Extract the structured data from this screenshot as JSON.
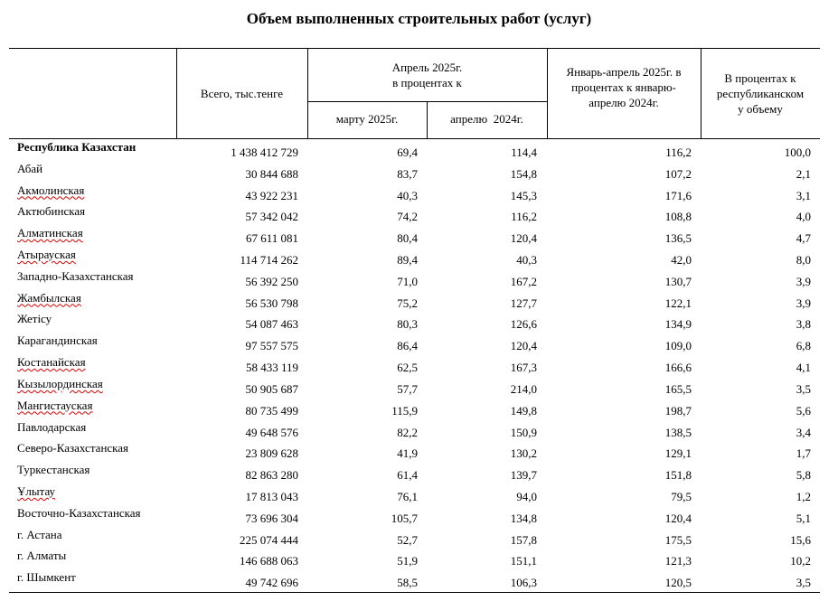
{
  "title": "Объем выполненных строительных работ (услуг)",
  "header": {
    "total": "Всего, тыс.тенге",
    "april_group": [
      "Апрель 2025г.",
      "в процентах к"
    ],
    "march": "марту 2025г.",
    "april2024": "апрелю  2024г.",
    "jan_apr": [
      "Январь-апрель 2025г. в",
      "процентах к январю-",
      "апрелю 2024г."
    ],
    "share": [
      "В процентах к",
      "республиканском",
      "у объему"
    ]
  },
  "table": {
    "rows": [
      [
        "Республика Казахстан",
        "1 438 412 729",
        "69,4",
        "114,4",
        "116,2",
        "100,0"
      ],
      [
        "Абай",
        "30 844 688",
        "83,7",
        "154,8",
        "107,2",
        "2,1"
      ],
      [
        "Акмолинская",
        "43 922 231",
        "40,3",
        "145,3",
        "171,6",
        "3,1"
      ],
      [
        "Актюбинская",
        "57 342 042",
        "74,2",
        "116,2",
        "108,8",
        "4,0"
      ],
      [
        "Алматинская",
        "67 611 081",
        "80,4",
        "120,4",
        "136,5",
        "4,7"
      ],
      [
        "Атырауская",
        "114 714 262",
        "89,4",
        "40,3",
        "42,0",
        "8,0"
      ],
      [
        "Западно-Казахстанская",
        "56 392 250",
        "71,0",
        "167,2",
        "130,7",
        "3,9"
      ],
      [
        "Жамбылская",
        "56 530 798",
        "75,2",
        "127,7",
        "122,1",
        "3,9"
      ],
      [
        "Жетісу",
        "54 087 463",
        "80,3",
        "126,6",
        "134,9",
        "3,8"
      ],
      [
        "Карагандинская",
        "97 557 575",
        "86,4",
        "120,4",
        "109,0",
        "6,8"
      ],
      [
        "Костанайская",
        "58 433 119",
        "62,5",
        "167,3",
        "166,6",
        "4,1"
      ],
      [
        "Кызылординская",
        "50 905 687",
        "57,7",
        "214,0",
        "165,5",
        "3,5"
      ],
      [
        "Мангистауская",
        "80 735 499",
        "115,9",
        "149,8",
        "198,7",
        "5,6"
      ],
      [
        "Павлодарская",
        "49 648 576",
        "82,2",
        "150,9",
        "138,5",
        "3,4"
      ],
      [
        "Северо-Казахстанская",
        "23 809 628",
        "41,9",
        "130,2",
        "129,1",
        "1,7"
      ],
      [
        "Туркестанская",
        "82 863 280",
        "61,4",
        "139,7",
        "151,8",
        "5,8"
      ],
      [
        "Ұлытау",
        "17 813 043",
        "76,1",
        "94,0",
        "79,5",
        "1,2"
      ],
      [
        "Восточно-Казахстанская",
        "73 696 304",
        "105,7",
        "134,8",
        "120,4",
        "5,1"
      ],
      [
        "г. Астана",
        "225 074 444",
        "52,7",
        "157,8",
        "175,5",
        "15,6"
      ],
      [
        "г. Алматы",
        "146 688 063",
        "51,9",
        "151,1",
        "121,3",
        "10,2"
      ],
      [
        "г. Шымкент",
        "49 742 696",
        "58,5",
        "106,3",
        "120,5",
        "3,5"
      ]
    ]
  }
}
